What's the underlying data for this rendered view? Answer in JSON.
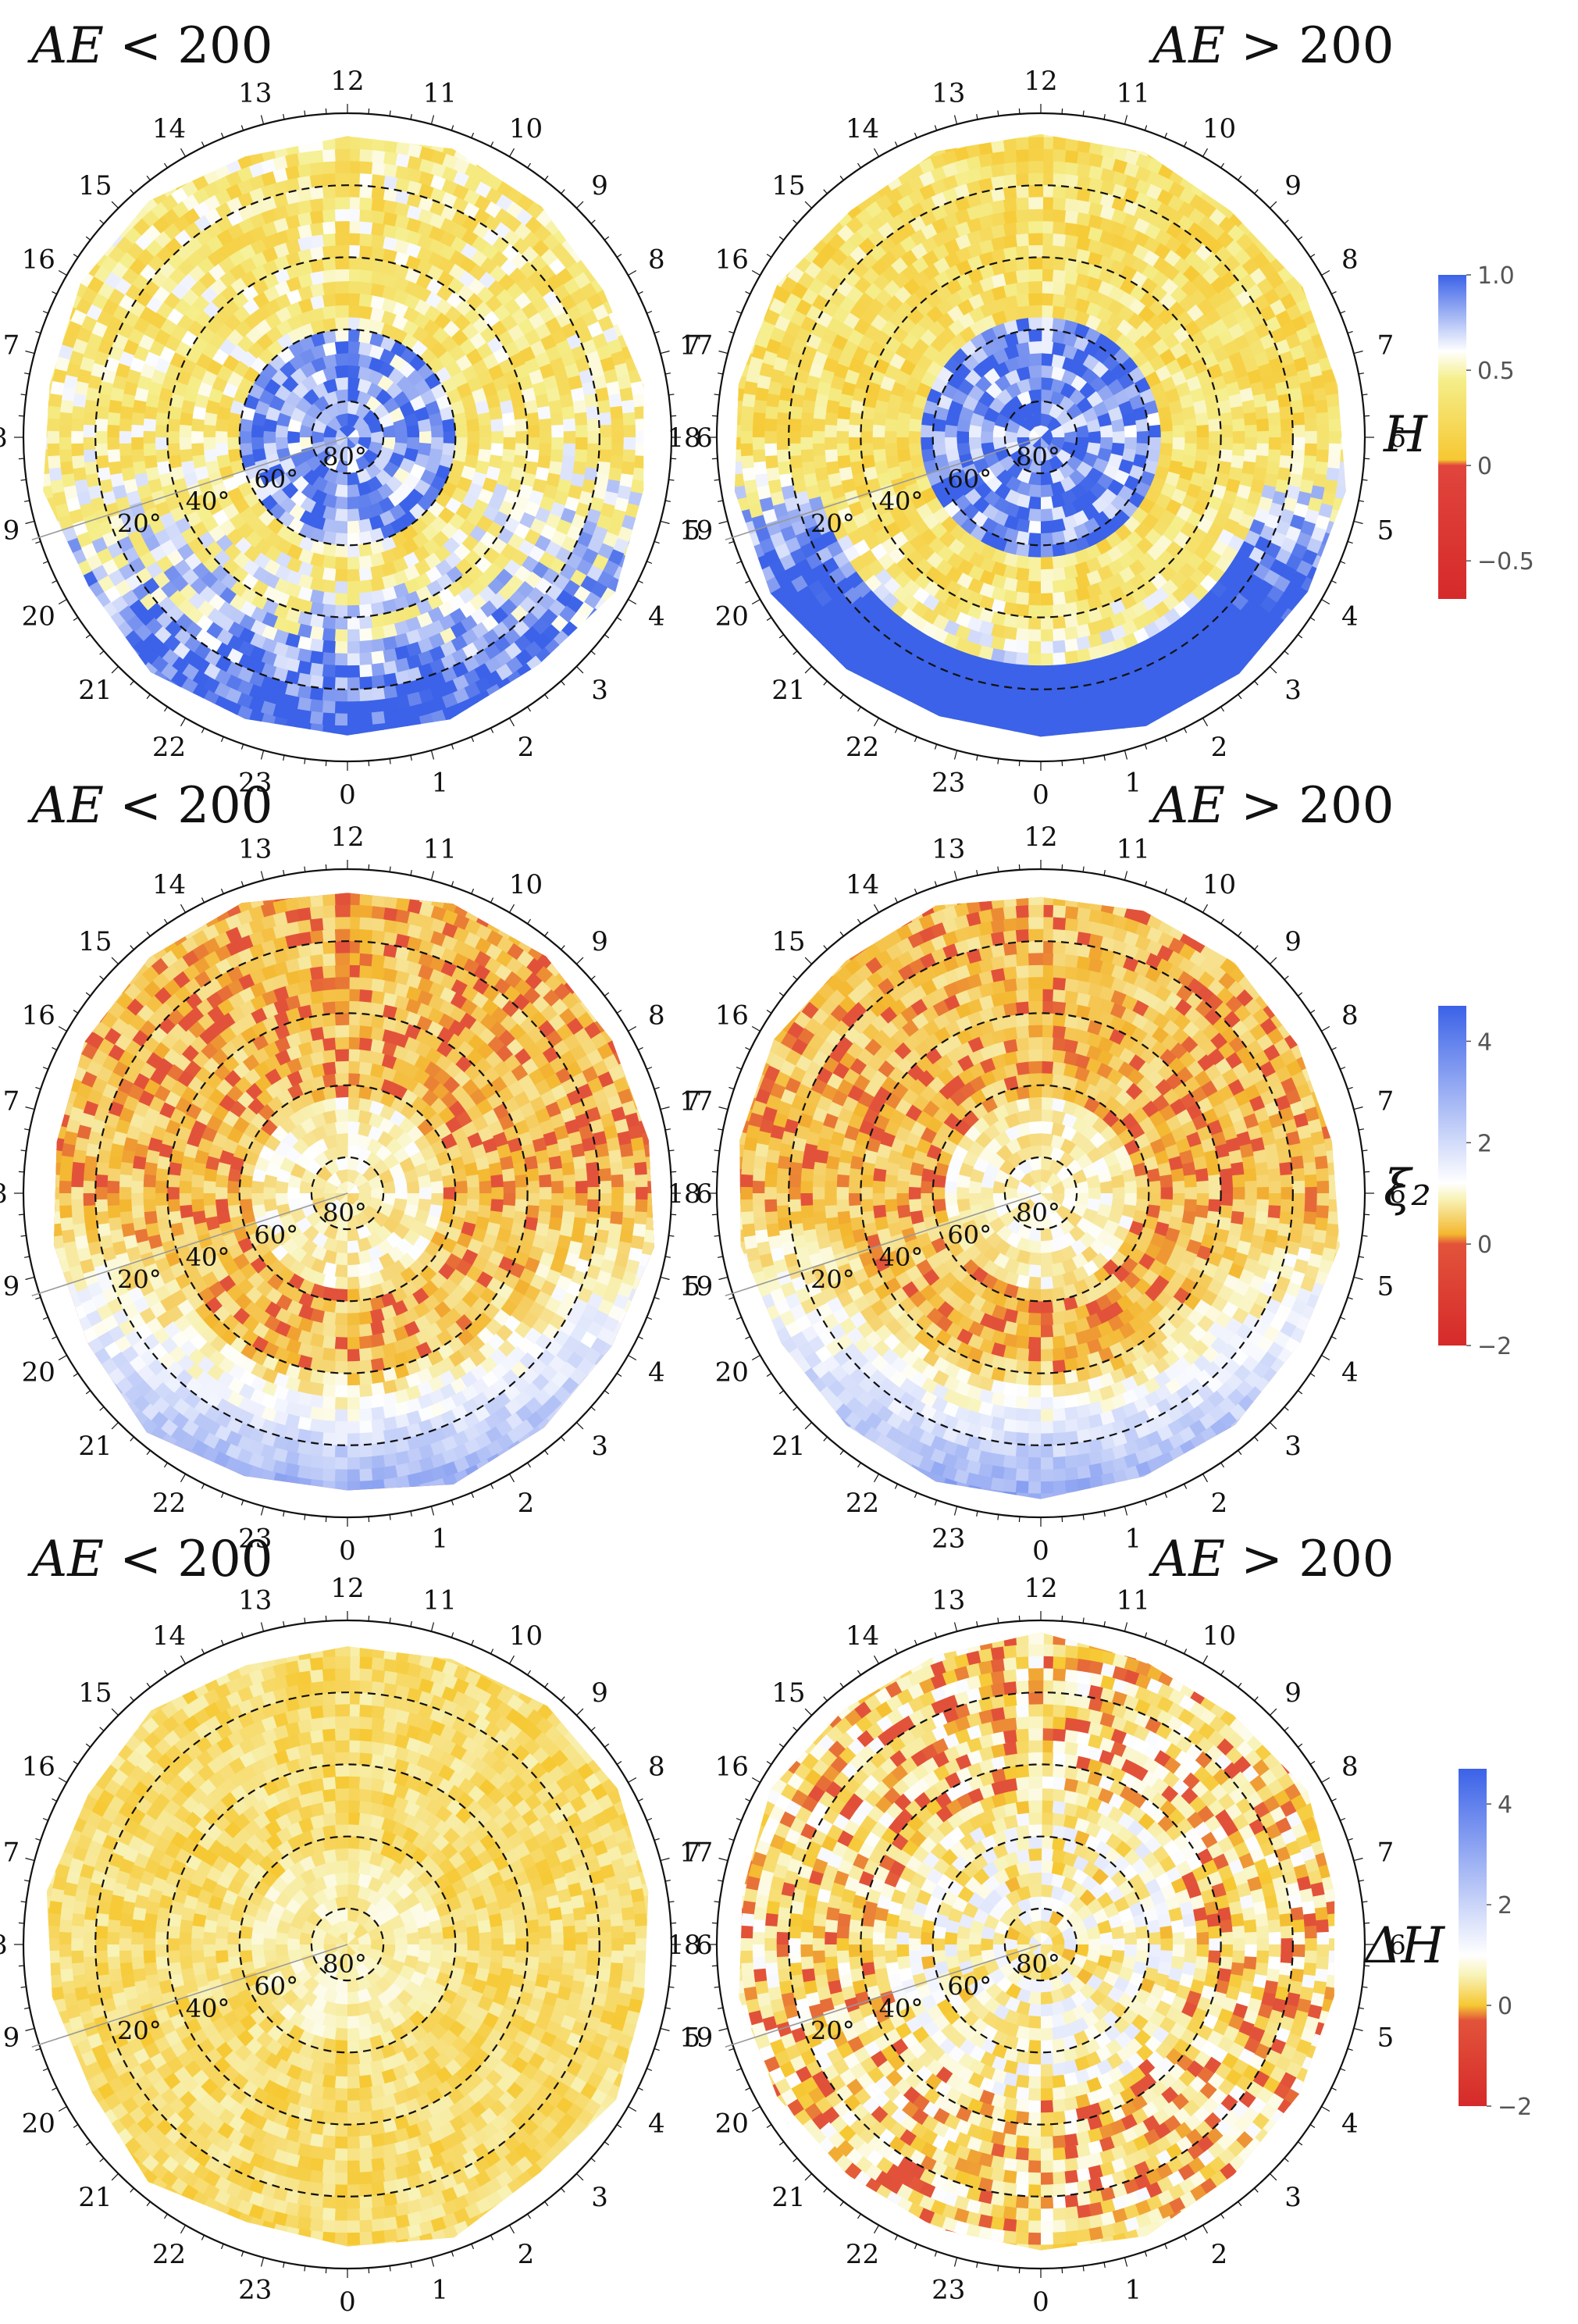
{
  "figure": {
    "rows": [
      {
        "quantity": "H",
        "colorbar": {
          "label": "H",
          "ticks": [
            "1.0",
            "0.5",
            "0",
            "−0.5"
          ],
          "range": [
            -0.7,
            1.0
          ],
          "stops": [
            {
              "v": -0.7,
              "c": "#d62a2a"
            },
            {
              "v": 0.0,
              "c": "#e0453c"
            },
            {
              "v": 0.03,
              "c": "#f6c832"
            },
            {
              "v": 0.45,
              "c": "#f5ee8a"
            },
            {
              "v": 0.6,
              "c": "#ffffff"
            },
            {
              "v": 1.0,
              "c": "#3b62e8"
            }
          ]
        }
      },
      {
        "quantity": "ξ2",
        "colorbar": {
          "label": "ξ₂",
          "ticks": [
            "4",
            "2",
            "0",
            "−2"
          ],
          "range": [
            -2,
            4.7
          ],
          "stops": [
            {
              "v": -2.0,
              "c": "#d62a2a"
            },
            {
              "v": 0.0,
              "c": "#e2533a"
            },
            {
              "v": 0.2,
              "c": "#f4b830"
            },
            {
              "v": 0.9,
              "c": "#f8f3b8"
            },
            {
              "v": 1.2,
              "c": "#ffffff"
            },
            {
              "v": 4.7,
              "c": "#3b62e8"
            }
          ]
        }
      },
      {
        "quantity": "ΔH",
        "colorbar": {
          "label": "ΔH",
          "ticks": [
            "4",
            "2",
            "0",
            "−2"
          ],
          "range": [
            -2,
            4.7
          ],
          "stops": [
            {
              "v": -2.0,
              "c": "#d62a2a"
            },
            {
              "v": -0.3,
              "c": "#e2533a"
            },
            {
              "v": 0.0,
              "c": "#f6c832"
            },
            {
              "v": 0.6,
              "c": "#f8f3b8"
            },
            {
              "v": 1.0,
              "c": "#ffffff"
            },
            {
              "v": 4.7,
              "c": "#3b62e8"
            }
          ]
        }
      }
    ],
    "columns": [
      {
        "title_var": "AE",
        "title_rel": " < 200"
      },
      {
        "title_var": "AE",
        "title_rel": " > 200"
      }
    ]
  },
  "chart_data": {
    "type": "heatmap",
    "projection": "polar (magnetic local time vs. magnetic latitude)",
    "panels": [
      {
        "row": "H",
        "condition": "AE < 200",
        "dominant_value": "≈0.8 (blue) near pole and night side, ≈0.35 (yellow) day side"
      },
      {
        "row": "H",
        "condition": "AE > 200",
        "dominant_value": "≈0.8 (blue) polar cap and night side, ≈0.3 (yellow) ring 50°–70°"
      },
      {
        "row": "ξ2",
        "condition": "AE < 200",
        "dominant_value": "≈0.3 (orange) most of disk, ≈1 (white) pole, ≈3 (blue) night side"
      },
      {
        "row": "ξ2",
        "condition": "AE > 200",
        "dominant_value": "≈0.3 (orange) most of disk, ≈1 (white) pole, ≈3 (blue) night side"
      },
      {
        "row": "ΔH",
        "condition": "AE < 200",
        "dominant_value": "≈0.3 (yellow) whole disk"
      },
      {
        "row": "ΔH",
        "condition": "AE > 200",
        "dominant_value": "≈0.3 (yellow) with scattered ≈1 (white/blue) near pole"
      }
    ],
    "mlt_ticks": [
      "0",
      "1",
      "2",
      "3",
      "4",
      "5",
      "6",
      "7",
      "8",
      "9",
      "10",
      "11",
      "12",
      "13",
      "14",
      "15",
      "16",
      "17",
      "18",
      "19",
      "20",
      "21",
      "22",
      "23"
    ],
    "latitude_circles": [
      {
        "lat": 80,
        "label": "80°"
      },
      {
        "lat": 60,
        "label": "60°"
      },
      {
        "lat": 40,
        "label": "40°"
      },
      {
        "lat": 20,
        "label": "20°"
      }
    ],
    "radial_axis_mlt": 7.2
  }
}
